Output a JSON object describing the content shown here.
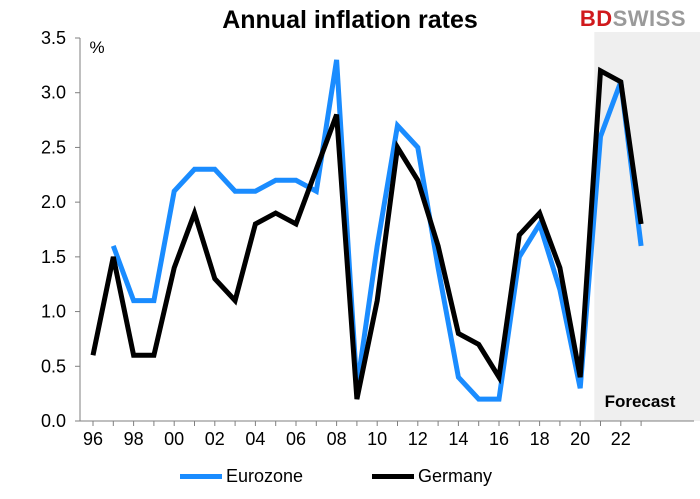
{
  "brand": {
    "part1": "BD",
    "part2": "SWISS"
  },
  "chart_data": {
    "type": "line",
    "title": "Annual inflation rates",
    "ylabel": "%",
    "xlabel": "",
    "ylim": [
      0,
      3.5
    ],
    "yticks": [
      "0.0",
      "0.5",
      "1.0",
      "1.5",
      "2.0",
      "2.5",
      "3.0",
      "3.5"
    ],
    "xticks": [
      "96",
      "98",
      "00",
      "02",
      "04",
      "06",
      "08",
      "10",
      "12",
      "14",
      "16",
      "18",
      "20",
      "22"
    ],
    "x": [
      1996,
      1997,
      1998,
      1999,
      2000,
      2001,
      2002,
      2003,
      2004,
      2005,
      2006,
      2007,
      2008,
      2009,
      2010,
      2011,
      2012,
      2013,
      2014,
      2015,
      2016,
      2017,
      2018,
      2019,
      2020,
      2021,
      2022,
      2023
    ],
    "forecast_label": "Forecast",
    "grid": false,
    "legend_position": "bottom",
    "series": [
      {
        "name": "Eurozone",
        "color": "#1a8cff",
        "values": [
          null,
          1.6,
          1.1,
          1.1,
          2.1,
          2.3,
          2.3,
          2.1,
          2.1,
          2.2,
          2.2,
          2.1,
          3.3,
          0.3,
          1.6,
          2.7,
          2.5,
          1.4,
          0.4,
          0.2,
          0.2,
          1.5,
          1.8,
          1.2,
          0.3,
          2.6,
          3.1,
          1.6
        ]
      },
      {
        "name": "Germany",
        "color": "#000000",
        "values": [
          0.6,
          1.5,
          0.6,
          0.6,
          1.4,
          1.9,
          1.3,
          1.1,
          1.8,
          1.9,
          1.8,
          2.3,
          2.8,
          0.2,
          1.1,
          2.5,
          2.2,
          1.6,
          0.8,
          0.7,
          0.4,
          1.7,
          1.9,
          1.4,
          0.4,
          3.2,
          3.1,
          1.8
        ]
      }
    ]
  }
}
